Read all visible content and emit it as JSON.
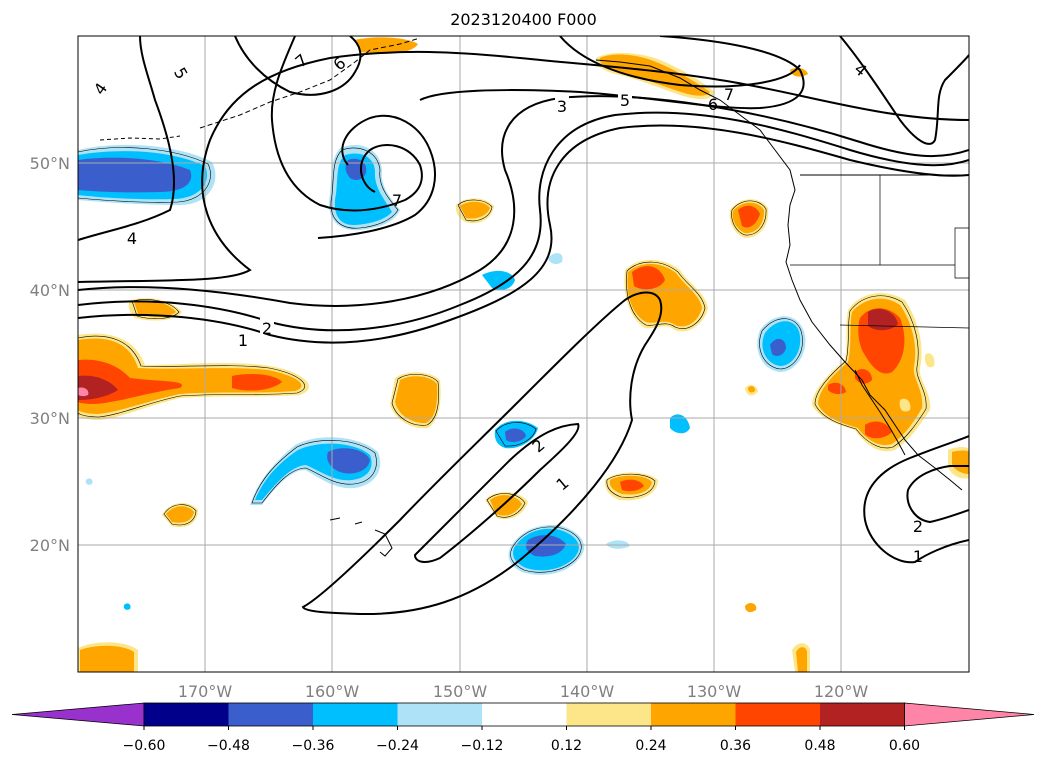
{
  "title": "2023120400 F000",
  "lat_labels": [
    "50°N",
    "40°N",
    "30°N",
    "20°N"
  ],
  "lon_labels": [
    "170°W",
    "160°W",
    "150°W",
    "140°W",
    "130°W",
    "120°W"
  ],
  "colorbar": {
    "tick_labels": [
      "−0.60",
      "−0.48",
      "−0.36",
      "−0.24",
      "−0.12",
      "0.12",
      "0.24",
      "0.36",
      "0.48",
      "0.60"
    ],
    "colors": [
      "#9932cc",
      "#00008b",
      "#3a5fcd",
      "#00bfff",
      "#aee3f7",
      "#ffffff",
      "#fde68a",
      "#ffa500",
      "#ff4500",
      "#b22222",
      "#ff85a8"
    ]
  },
  "contour_labels": [
    "1",
    "2",
    "3",
    "4",
    "5",
    "6",
    "7"
  ],
  "map_extent": {
    "lon_min": -180,
    "lon_max": -110,
    "lat_min": 10,
    "lat_max": 60
  }
}
